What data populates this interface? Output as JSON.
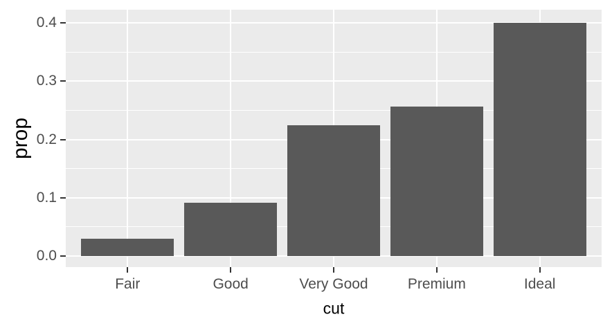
{
  "chart_data": {
    "type": "bar",
    "title": "",
    "categories": [
      "Fair",
      "Good",
      "Very Good",
      "Premium",
      "Ideal"
    ],
    "values": [
      0.03,
      0.091,
      0.225,
      0.257,
      0.4
    ],
    "xlabel": "cut",
    "ylabel": "prop",
    "ylim": [
      0,
      0.42
    ],
    "yticks": [
      "0.0",
      "0.1",
      "0.2",
      "0.3",
      "0.4"
    ],
    "ytick_values": [
      0.0,
      0.1,
      0.2,
      0.3,
      0.4
    ],
    "yminor_values": [
      0.05,
      0.15,
      0.25,
      0.35
    ],
    "grid": "white major + minor horizontal lines, white major vertical lines at category centers",
    "legend_position": "none",
    "bar_width_ratio": 0.9,
    "colors": {
      "bar_fill": "#595959",
      "panel_background": "#EBEBEB",
      "gridline": "#FFFFFF",
      "tick_mark": "#333333",
      "axis_text": "#4D4D4D",
      "axis_title": "#000000",
      "figure_background": "#FFFFFF"
    }
  }
}
